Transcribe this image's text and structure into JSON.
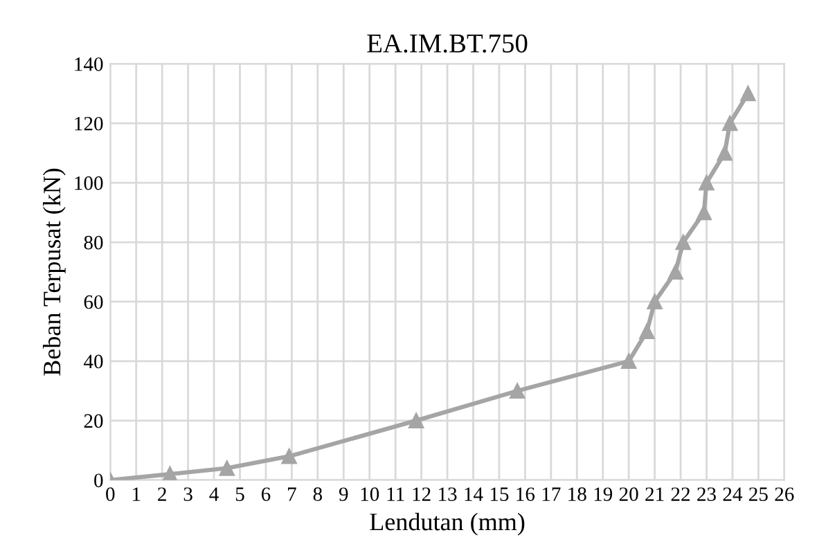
{
  "chart_data": {
    "type": "line",
    "title": "EA.IM.BT.750",
    "xlabel": "Lendutan (mm)",
    "ylabel": "Beban Terpusat (kN)",
    "x": [
      0,
      2.3,
      4.5,
      6.9,
      11.8,
      15.7,
      20,
      20.7,
      21,
      21.8,
      22.1,
      22.9,
      23,
      23.7,
      23.9,
      24.6
    ],
    "series": [
      {
        "color": "#a5a5a5",
        "values": [
          0,
          2,
          4,
          8,
          20,
          30,
          40,
          50,
          60,
          70,
          80,
          90,
          100,
          110,
          120,
          130
        ]
      }
    ],
    "xlim": [
      0,
      26
    ],
    "xticks": [
      0,
      1,
      2,
      3,
      4,
      5,
      6,
      7,
      8,
      9,
      10,
      11,
      12,
      13,
      14,
      15,
      16,
      17,
      18,
      19,
      20,
      21,
      22,
      23,
      24,
      25,
      26
    ],
    "ylim": [
      0,
      140
    ],
    "yticks": [
      0,
      20,
      40,
      60,
      80,
      100,
      120,
      140
    ],
    "grid": true,
    "marker": "triangle",
    "line_style": "solid"
  }
}
